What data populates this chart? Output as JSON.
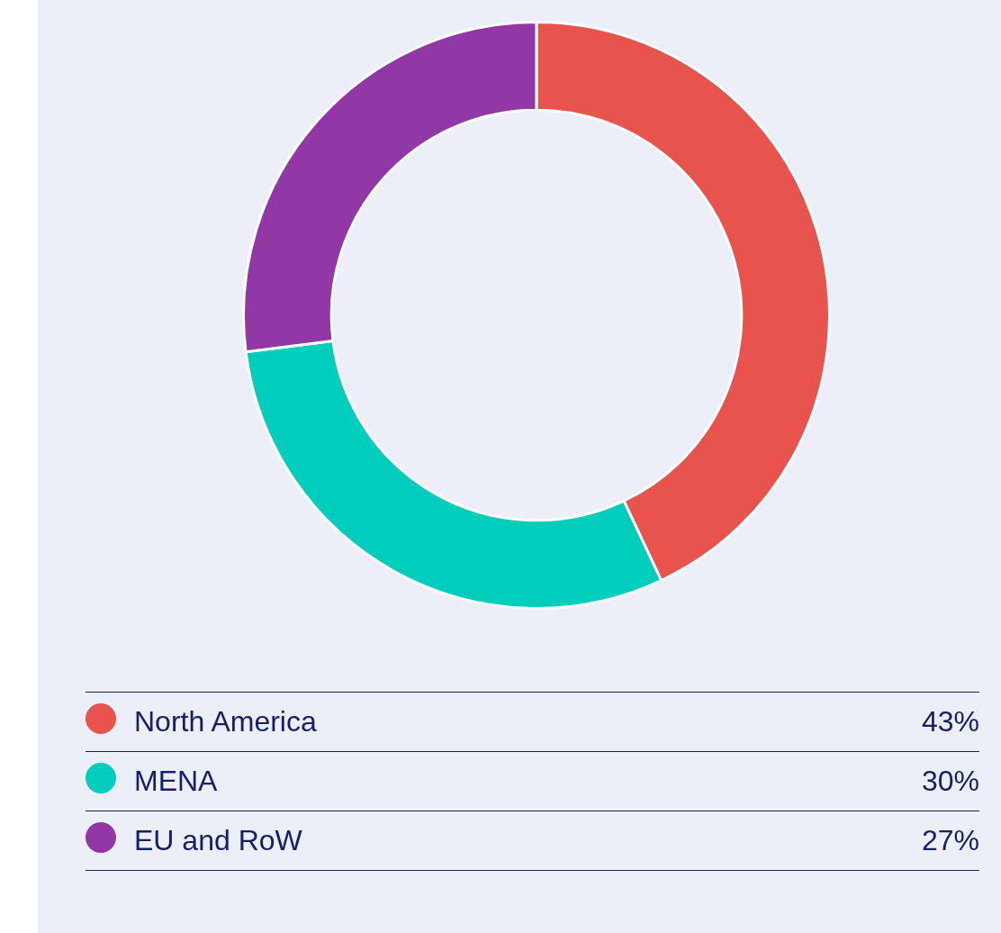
{
  "chart_data": {
    "type": "donut",
    "categories": [
      "North America",
      "MENA",
      "EU and RoW"
    ],
    "values": [
      43,
      30,
      27
    ],
    "colors": [
      "#e9534e",
      "#00cdbb",
      "#9138a6"
    ],
    "value_labels": [
      "43%",
      "30%",
      "27%"
    ],
    "legend": "bottom"
  }
}
